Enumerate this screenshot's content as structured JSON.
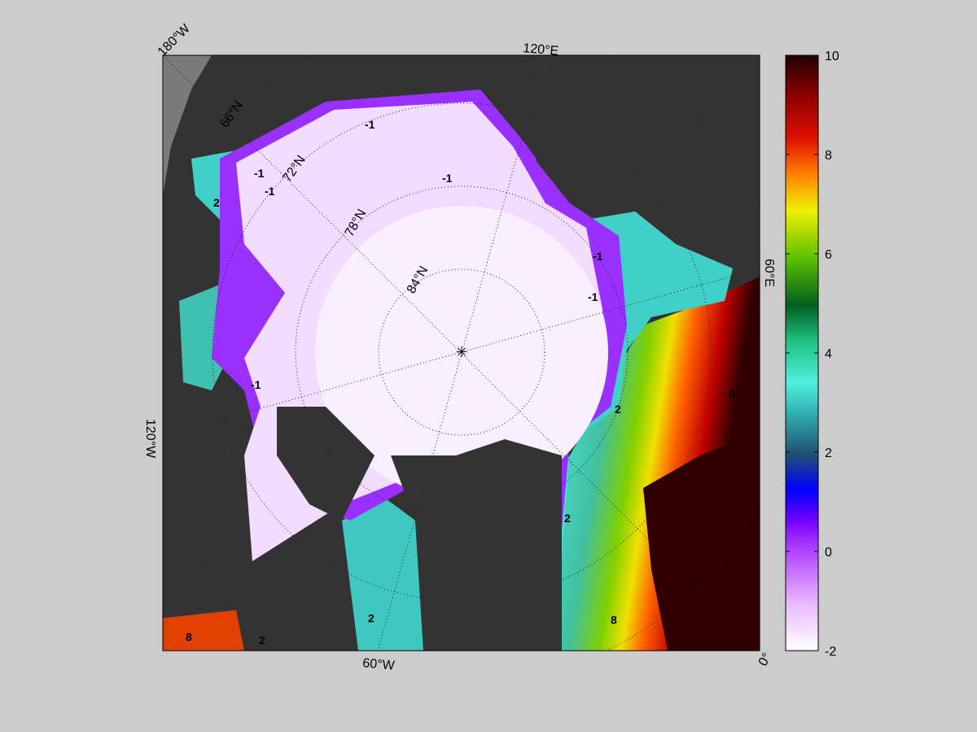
{
  "map": {
    "longitude_labels": [
      "180°W",
      "120°E",
      "60°E",
      "0°",
      "120°W",
      "60°W"
    ],
    "latitude_labels": [
      "66°N",
      "72°N",
      "78°N",
      "84°N"
    ],
    "contour_labels": [
      -1,
      -1,
      -1,
      -1,
      -1,
      -1,
      -1,
      2,
      2,
      2,
      2,
      2,
      8,
      8,
      8
    ],
    "colorbar": {
      "lim": [
        -2,
        10
      ],
      "ticks": [
        -2,
        0,
        2,
        4,
        6,
        8,
        10
      ]
    }
  }
}
